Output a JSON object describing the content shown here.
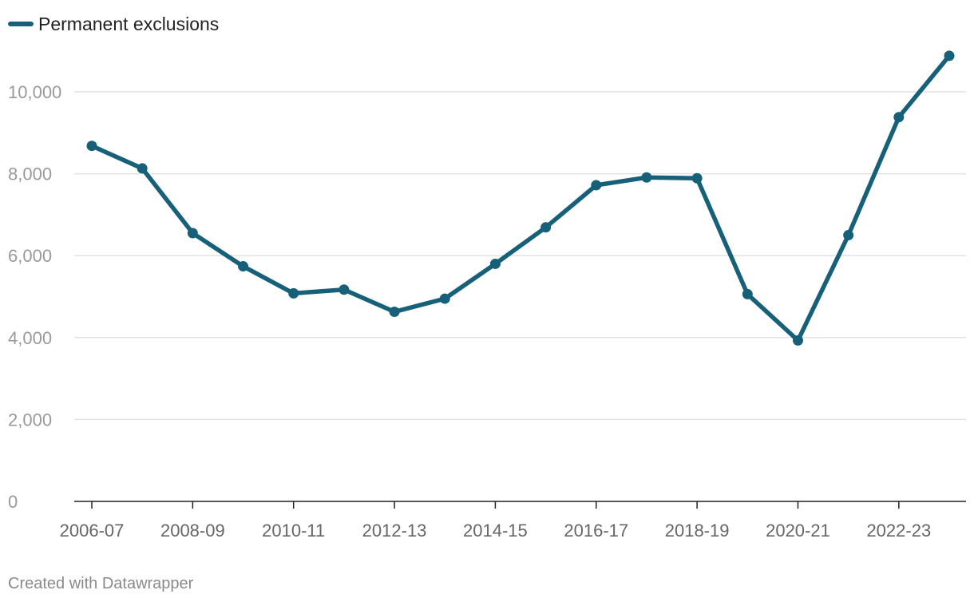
{
  "chart_data": {
    "type": "line",
    "categories": [
      "2006-07",
      "2007-08",
      "2008-09",
      "2009-10",
      "2010-11",
      "2011-12",
      "2012-13",
      "2013-14",
      "2014-15",
      "2015-16",
      "2016-17",
      "2017-18",
      "2018-19",
      "2019-20",
      "2020-21",
      "2021-22",
      "2022-23",
      "2023-24"
    ],
    "x_tick_labels": [
      "2006-07",
      "2008-09",
      "2010-11",
      "2012-13",
      "2014-15",
      "2016-17",
      "2018-19",
      "2020-21",
      "2022-23"
    ],
    "series": [
      {
        "name": "Permanent exclusions",
        "color": "#17607a",
        "values": [
          8680,
          8130,
          6550,
          5740,
          5080,
          5170,
          4630,
          4950,
          5800,
          6690,
          7720,
          7910,
          7890,
          5060,
          3930,
          6500,
          9380,
          10880
        ]
      }
    ],
    "y_ticks": [
      0,
      2000,
      4000,
      6000,
      8000,
      10000
    ],
    "y_tick_labels": [
      "0",
      "2,000",
      "4,000",
      "6,000",
      "8,000",
      "10,000"
    ],
    "ylim": [
      0,
      11000
    ],
    "grid": true,
    "legend": "top-left"
  },
  "footer": {
    "credit": "Created with Datawrapper"
  },
  "colors": {
    "series": "#17607a",
    "grid": "#e2e2e2",
    "axis": "#222222",
    "tick_text": "#9a9a9a"
  }
}
